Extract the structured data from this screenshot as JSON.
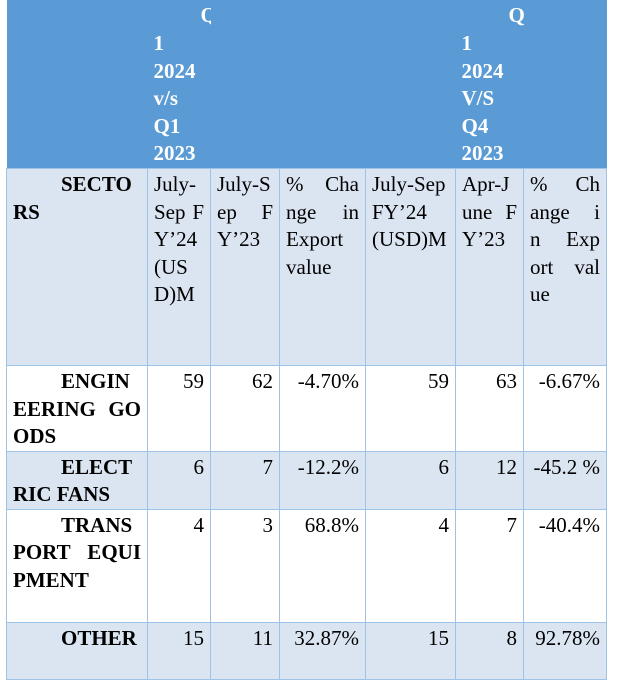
{
  "header": {
    "group1": {
      "q": "Q",
      "lines": [
        "1",
        "2024",
        "v/s",
        "Q1",
        "2023"
      ]
    },
    "group2": {
      "q": "Q",
      "lines": [
        "1",
        "2024",
        "V/S",
        "Q4",
        "2023"
      ]
    }
  },
  "subheader": {
    "sectors": "SECTORS",
    "col1": "July-Sep FY’24 (USD)M",
    "col2": "July-Sep FY’23",
    "col3": "% Change in Export value",
    "col4": "July-Sep FY’24 (USD)M",
    "col5": "Apr-June FY’23",
    "col6": "% Change in Export value"
  },
  "rows": [
    {
      "sector": "ENGINEERING GOODS",
      "c1": "59",
      "c2": "62",
      "c3": "-4.70%",
      "c4": "59",
      "c5": "63",
      "c6": "-6.67%"
    },
    {
      "sector": "ELECTRIC FANS",
      "c1": "6",
      "c2": "7",
      "c3": "-12.2%",
      "c4": "6",
      "c5": "12",
      "c6": "-45.2 %"
    },
    {
      "sector": "TRANSPORT EQUIPMENT",
      "c1": "4",
      "c2": "3",
      "c3": "68.8%",
      "c4": "4",
      "c5": "7",
      "c6": "-40.4%"
    },
    {
      "sector": "OTHER",
      "c1": "15",
      "c2": "11",
      "c3": "32.87%",
      "c4": "15",
      "c5": "8",
      "c6": "92.78%"
    }
  ]
}
